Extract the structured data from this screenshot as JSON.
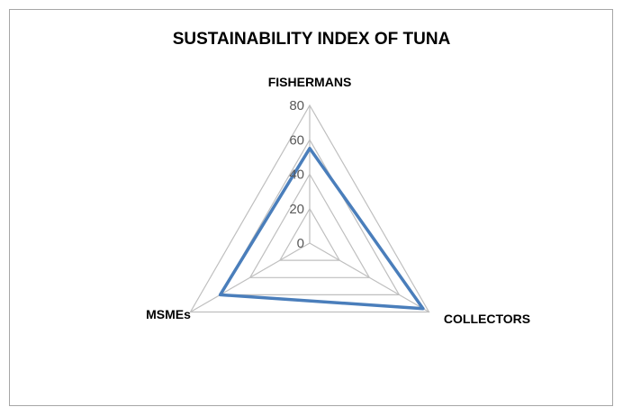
{
  "chart_data": {
    "type": "radar",
    "title": "SUSTAINABILITY INDEX OF TUNA",
    "categories": [
      "FISHERMANS",
      "COLLECTORS",
      "MSMEs"
    ],
    "series": [
      {
        "values": [
          55,
          76,
          60
        ]
      }
    ],
    "rlim": [
      0,
      80
    ],
    "ticks": [
      "0",
      "20",
      "40",
      "60",
      "80"
    ],
    "grid": true,
    "legend": "none"
  },
  "colors": {
    "series": "#4a7ebb",
    "grid": "#bfbfbf",
    "border": "#a6a6a6"
  }
}
